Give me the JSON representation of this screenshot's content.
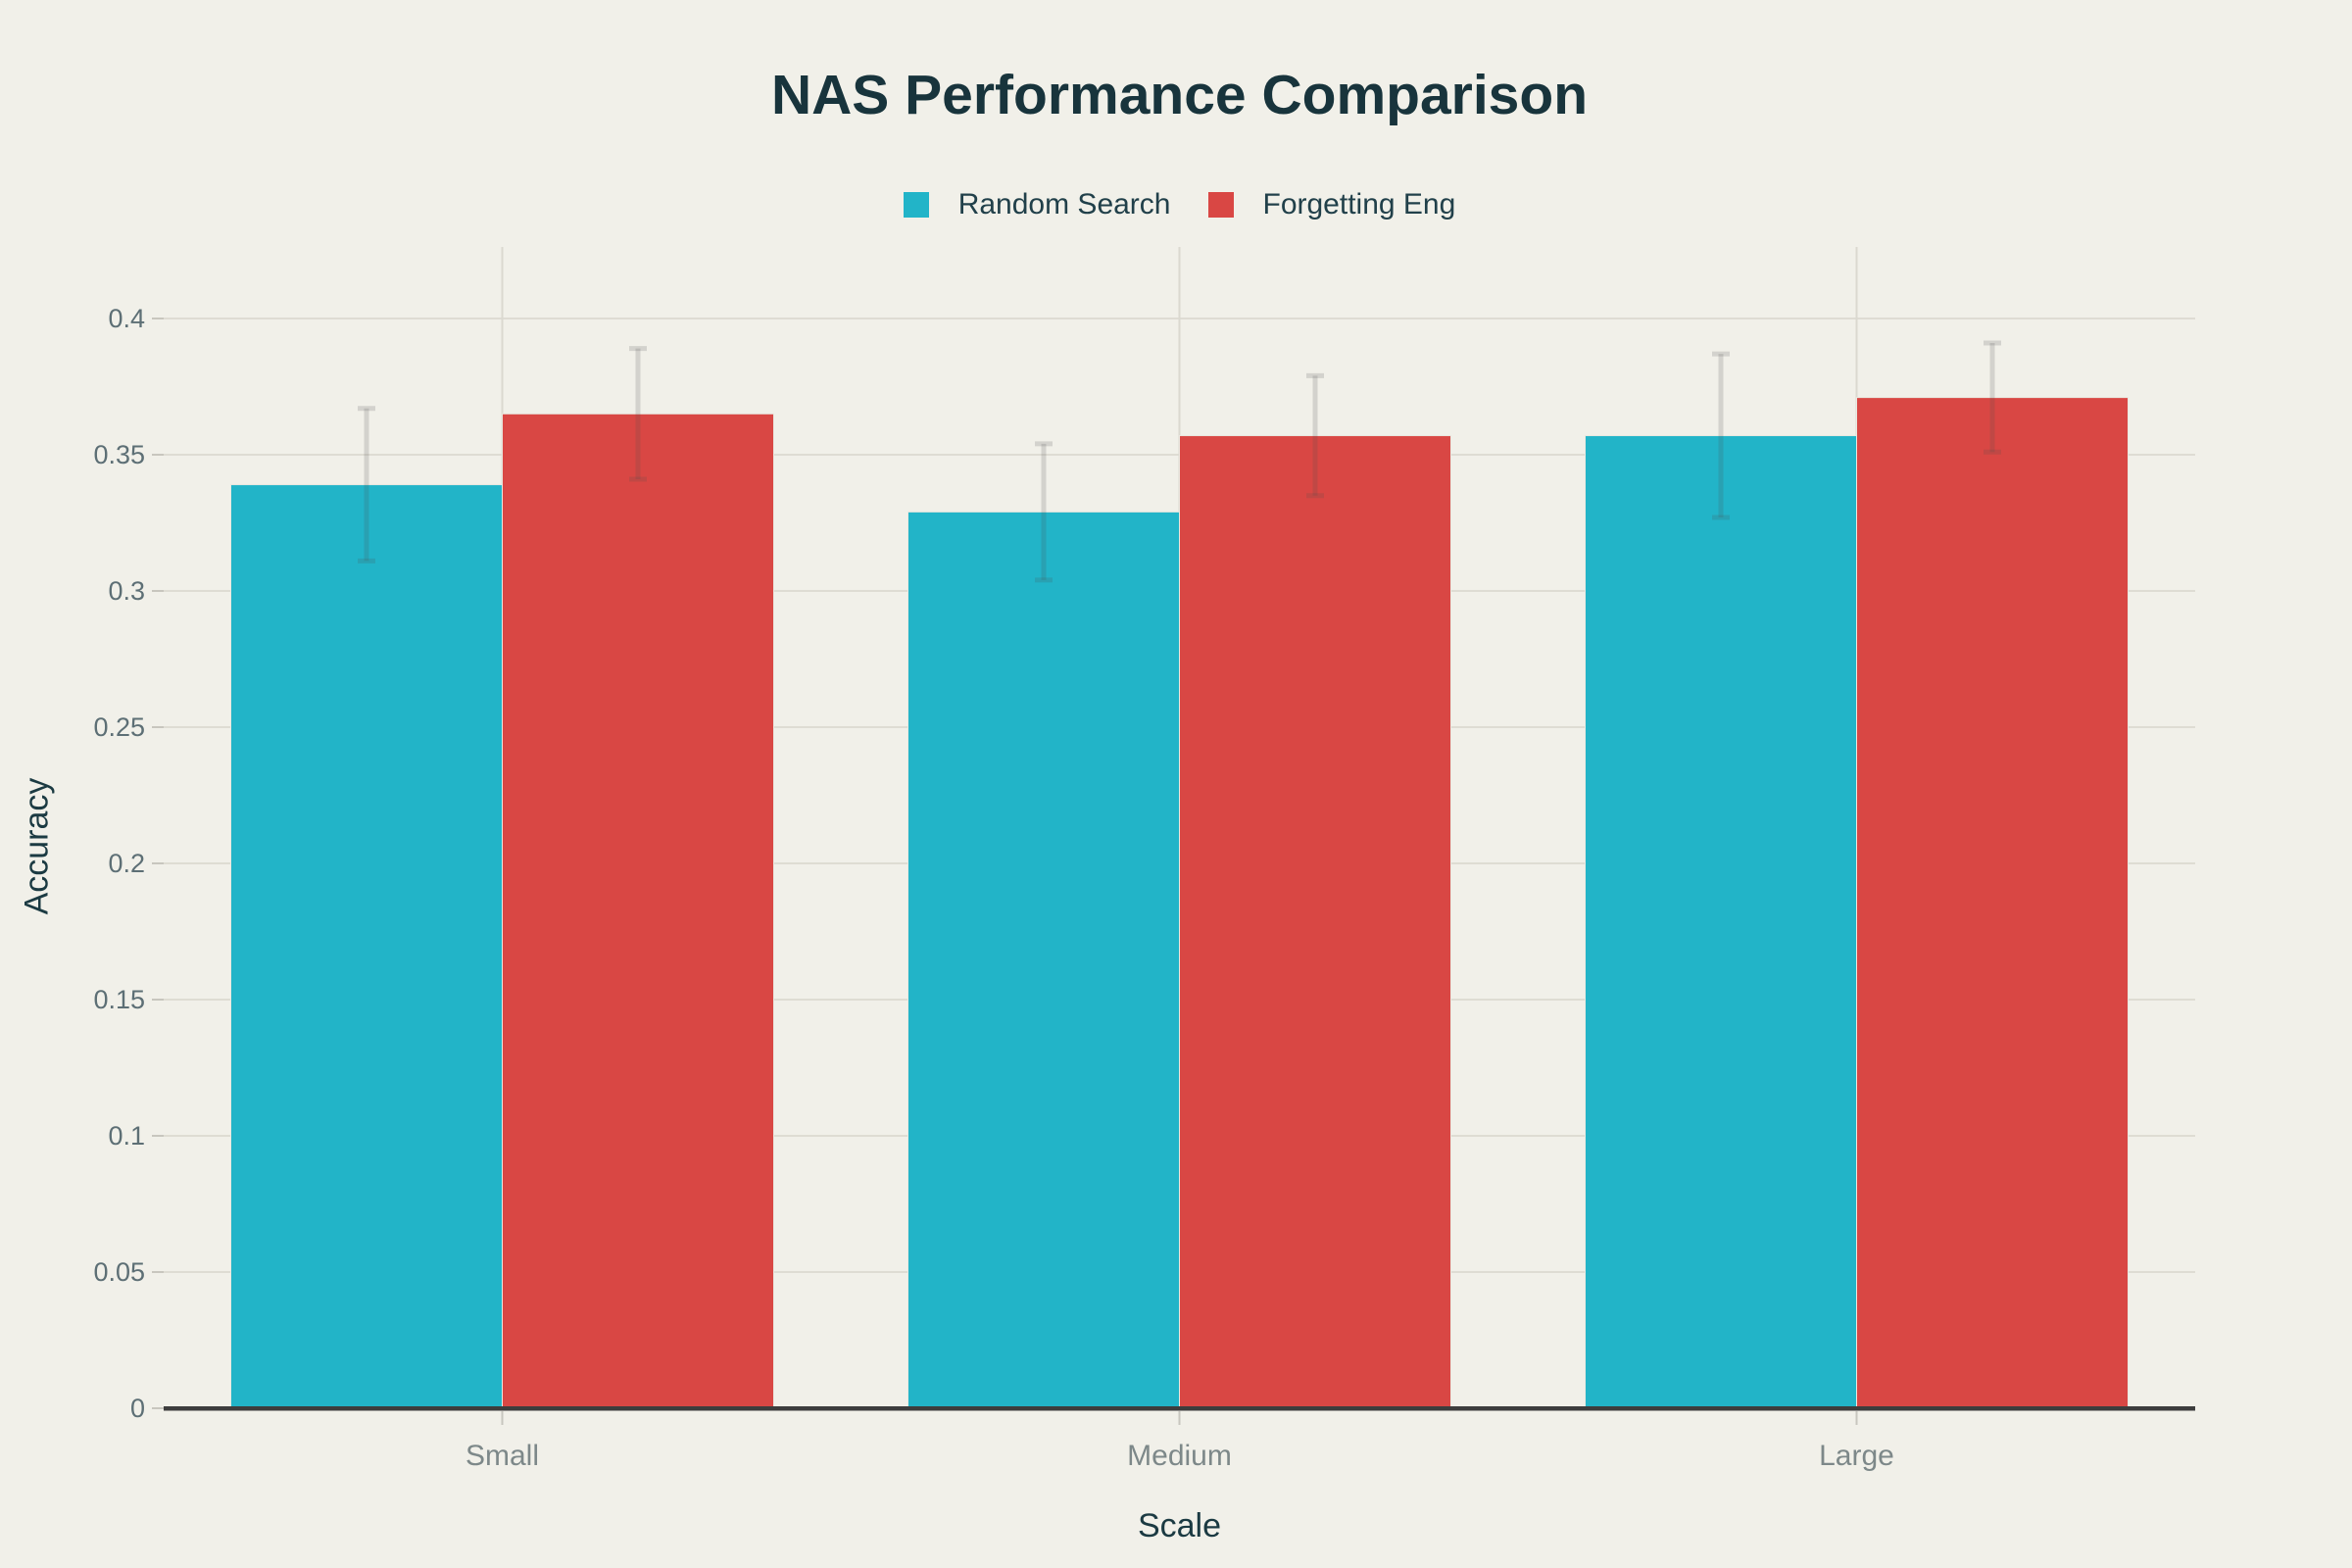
{
  "chart": {
    "title": "NAS Performance Comparison",
    "xlabel": "Scale",
    "ylabel": "Accuracy"
  },
  "chart_data": {
    "type": "bar",
    "title": "NAS Performance Comparison",
    "xlabel": "Scale",
    "ylabel": "Accuracy",
    "categories": [
      "Small",
      "Medium",
      "Large"
    ],
    "series": [
      {
        "name": "Random Search",
        "color": "#22b4c8",
        "values": [
          0.339,
          0.329,
          0.357
        ],
        "errors": [
          0.028,
          0.025,
          0.03
        ]
      },
      {
        "name": "Forgetting Eng",
        "color": "#d94744",
        "values": [
          0.365,
          0.357,
          0.371
        ],
        "errors": [
          0.024,
          0.022,
          0.02
        ]
      }
    ],
    "yticks": [
      0,
      0.05,
      0.1,
      0.15,
      0.2,
      0.25,
      0.3,
      0.35,
      0.4
    ],
    "ylim": [
      0,
      0.4275
    ],
    "grid": true,
    "legend_position": "top-center"
  },
  "colors": {
    "background": "#f1f0e9",
    "grid_line": "#dedcd3",
    "vertical_grid_line": "#dbd9d0",
    "axis_line": "#3d3d3d",
    "tick_mark": "#c8c6be",
    "tick_label": "#5d6f75",
    "category_label": "#7d8889",
    "title_text": "#18343c",
    "error_bar": "rgba(80,80,80,0.18)"
  }
}
